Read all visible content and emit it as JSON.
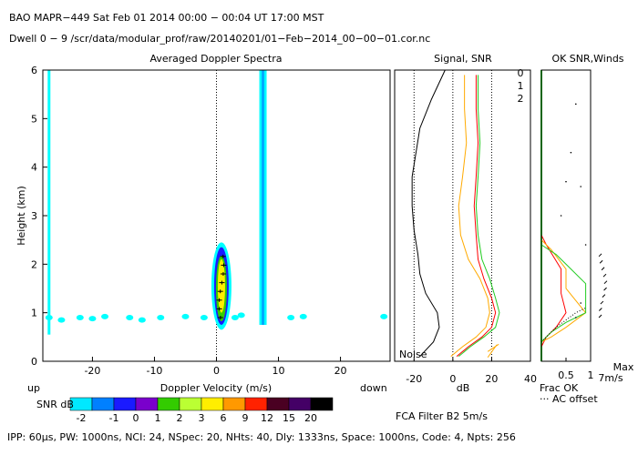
{
  "header": {
    "line1": "BAO  MAPR−449  Sat Feb 01 2014 00:00 − 00:04 UT 17:00 MST",
    "line2": "Dwell  0 −  9   /scr/data/modular_prof/raw/20140201/01−Feb−2014_00−00−01.cor.nc"
  },
  "footer": "IPP:  60μs,  PW: 1000ns,  NCI:  24,  NSpec: 20, NHts: 40,  Dly: 1333ns,  Space: 1000ns,  Code: 4,  Npts: 256",
  "colors": {
    "axes": "#000000",
    "bg_cyan": "#00ffff",
    "spectral_line": "#00aaff",
    "noise_curve": "#000000",
    "snr_beam0": "#ff0000",
    "snr_beam1": "#ffaa00",
    "snr_beam2": "#22cc22"
  },
  "chart_data": [
    {
      "type": "heatmap",
      "title": "Averaged Doppler Spectra",
      "xlabel": "Doppler Velocity (m/s)",
      "ylabel": "Height (km)",
      "xlim": [
        -28,
        28
      ],
      "ylim": [
        0,
        6
      ],
      "xticks": [
        -20,
        -10,
        0,
        10,
        20
      ],
      "yticks": [
        0,
        1,
        2,
        3,
        4,
        5,
        6
      ],
      "x_end_labels": {
        "left": "up",
        "right": "down"
      },
      "colorbar": {
        "label": "SNR dB",
        "ticks": [
          -2,
          -1,
          0,
          1,
          2,
          3,
          6,
          9,
          12,
          15,
          20
        ],
        "colors": [
          "#00e8ff",
          "#0080ff",
          "#1a1aff",
          "#7a00cc",
          "#33cc00",
          "#bbff33",
          "#ffee00",
          "#ff9900",
          "#ff2200",
          "#4a0022",
          "#440066",
          "#000000"
        ]
      },
      "features": [
        {
          "name": "ground clutter column",
          "velocity": -27.0,
          "height_range": [
            0.55,
            6.0
          ]
        },
        {
          "name": "stationary interference line",
          "velocity": 7.5,
          "height_range": [
            0.75,
            6.0
          ]
        },
        {
          "name": "atmospheric echo",
          "velocity_center": 0.8,
          "height_range": [
            0.65,
            2.45
          ],
          "peak_snr_db": 3
        }
      ]
    },
    {
      "type": "line",
      "title": "Signal, SNR",
      "xlabel": "dB",
      "xlim": [
        -30,
        40
      ],
      "ylim": [
        0,
        6
      ],
      "xticks": [
        -20,
        0,
        20,
        40
      ],
      "annotation": "Noise",
      "legend": [
        "0",
        "1",
        "2"
      ],
      "series": [
        {
          "name": "Noise",
          "x": [
            -4,
            -11,
            -17,
            -19,
            -21,
            -21,
            -20,
            -18,
            -17,
            -14,
            -8,
            -7,
            -10,
            -17
          ],
          "y": [
            6.0,
            5.4,
            4.8,
            4.3,
            3.8,
            3.2,
            2.7,
            2.2,
            1.8,
            1.4,
            1.0,
            0.7,
            0.4,
            0.1
          ]
        },
        {
          "name": "0",
          "x": [
            12,
            12,
            13,
            12,
            11,
            12,
            13,
            16,
            20,
            22,
            20,
            15,
            8,
            2
          ],
          "y": [
            5.9,
            5.2,
            4.5,
            3.8,
            3.2,
            2.6,
            2.1,
            1.7,
            1.3,
            1.0,
            0.7,
            0.5,
            0.3,
            0.1
          ]
        },
        {
          "name": "1",
          "x": [
            6,
            6,
            7,
            5,
            3,
            4,
            8,
            14,
            18,
            19,
            17,
            12,
            5,
            -1
          ],
          "y": [
            5.9,
            5.2,
            4.5,
            3.8,
            3.2,
            2.6,
            2.1,
            1.7,
            1.3,
            1.0,
            0.7,
            0.5,
            0.3,
            0.1
          ]
        },
        {
          "name": "2",
          "x": [
            13,
            13,
            14,
            13,
            12,
            13,
            15,
            19,
            22,
            24,
            22,
            16,
            9,
            3
          ],
          "y": [
            5.9,
            5.2,
            4.5,
            3.8,
            3.2,
            2.6,
            2.1,
            1.7,
            1.3,
            1.0,
            0.7,
            0.5,
            0.3,
            0.1
          ]
        }
      ],
      "footnote": "FCA Filter B2  5m/s"
    },
    {
      "type": "line",
      "title": "OK SNR,Winds",
      "xlabel": "Frac OK",
      "xlim": [
        0,
        1
      ],
      "ylim": [
        0,
        6
      ],
      "xticks": [
        0.5,
        1
      ],
      "annotation": "Max 7m/s",
      "footnote": "AC offset",
      "series": [
        {
          "name": "0",
          "x": [
            0.0,
            0.1,
            0.4,
            0.4,
            0.5,
            0.3,
            0.1,
            0.0
          ],
          "y": [
            2.6,
            2.4,
            1.9,
            1.4,
            1.0,
            0.7,
            0.5,
            0.3
          ]
        },
        {
          "name": "1",
          "x": [
            0.0,
            0.2,
            0.5,
            0.5,
            0.9,
            0.5,
            0.2,
            0.0
          ],
          "y": [
            2.5,
            2.3,
            1.9,
            1.5,
            1.0,
            0.7,
            0.5,
            0.4
          ]
        },
        {
          "name": "2",
          "x": [
            0.0,
            0.3,
            0.6,
            0.9,
            0.9,
            0.5,
            0.2,
            0.0
          ],
          "y": [
            2.4,
            2.2,
            1.9,
            1.6,
            1.0,
            0.8,
            0.6,
            0.4
          ]
        }
      ]
    }
  ]
}
